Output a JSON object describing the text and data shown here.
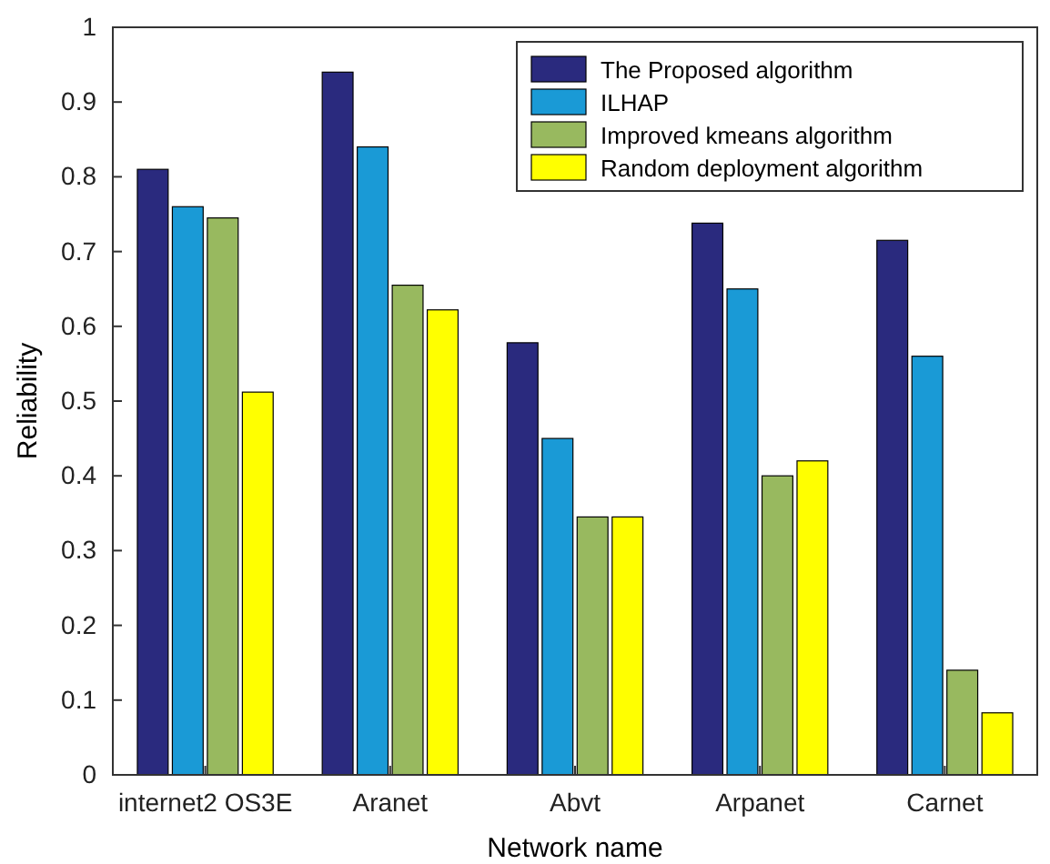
{
  "chart_data": {
    "type": "bar",
    "xlabel": "Network name",
    "ylabel": "Reliability",
    "categories": [
      "internet2 OS3E",
      "Aranet",
      "Abvt",
      "Arpanet",
      "Carnet"
    ],
    "series": [
      {
        "name": "The Proposed algorithm",
        "color": "#2a2a7e",
        "values": [
          0.81,
          0.94,
          0.578,
          0.738,
          0.715
        ]
      },
      {
        "name": "ILHAP",
        "color": "#1a9ad6",
        "values": [
          0.76,
          0.84,
          0.45,
          0.65,
          0.56
        ]
      },
      {
        "name": "Improved kmeans algorithm",
        "color": "#98b95f",
        "values": [
          0.745,
          0.655,
          0.345,
          0.4,
          0.14
        ]
      },
      {
        "name": "Random deployment algorithm",
        "color": "#ffff00",
        "values": [
          0.512,
          0.622,
          0.345,
          0.42,
          0.083
        ]
      }
    ],
    "ylim": [
      0,
      1
    ],
    "yticks": [
      0,
      0.1,
      0.2,
      0.3,
      0.4,
      0.5,
      0.6,
      0.7,
      0.8,
      0.9,
      1
    ],
    "legend": "top right"
  }
}
